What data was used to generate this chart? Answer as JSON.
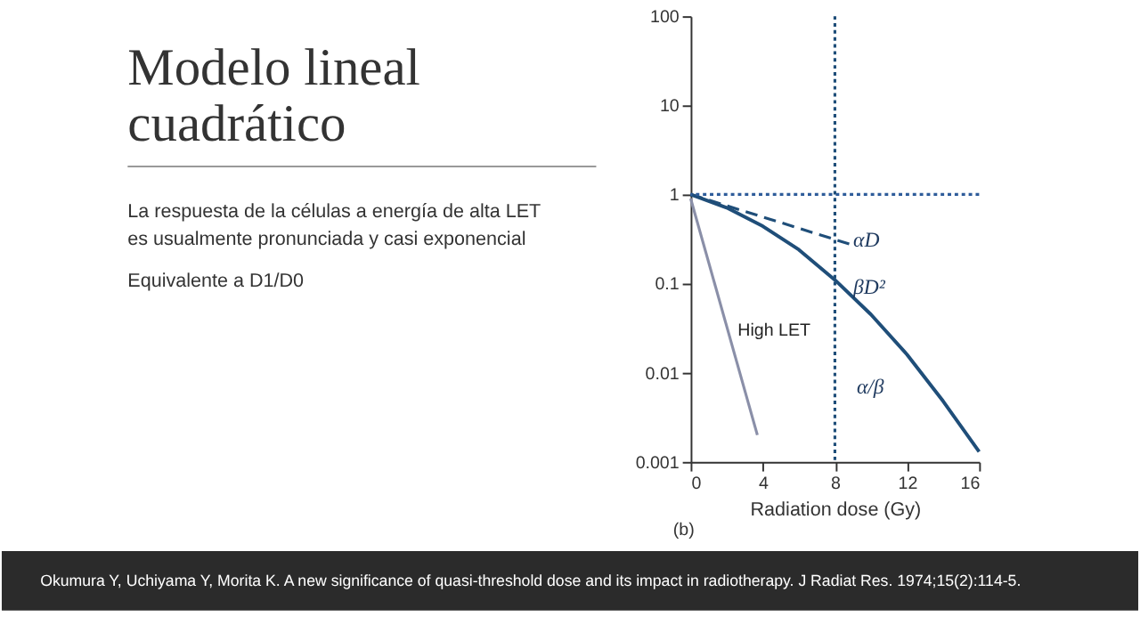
{
  "chart_data": {
    "type": "line",
    "title": "Modelo lineal cuadrático",
    "xlabel": "Radiation dose (Gy)",
    "x": [
      0,
      2,
      4,
      6,
      8,
      10,
      12,
      14,
      16
    ],
    "series": [
      {
        "color": "#1f4e79",
        "line_style": "solid",
        "values": [
          1,
          0.71,
          0.44,
          0.24,
          0.11,
          0.045,
          0.016,
          0.0048,
          0.0013
        ]
      },
      {
        "color": "#1f4e79",
        "line_style": "dashed",
        "x": [
          0,
          9
        ],
        "values": [
          1,
          0.27
        ]
      },
      {
        "name": "High LET",
        "color": "#8a8fa8",
        "line_style": "solid",
        "x": [
          0,
          3.7
        ],
        "values": [
          0.9,
          0.002
        ]
      }
    ],
    "log": "y",
    "xlim": [
      0,
      16
    ],
    "ylim": [
      0.001,
      100
    ],
    "xticks": [
      0,
      4,
      8,
      12,
      16
    ],
    "yticks": [
      0.001,
      0.01,
      0.1,
      1,
      10,
      100
    ],
    "grid": false,
    "legend": false,
    "marker": "none",
    "ref_lines": [
      {
        "axis": "y",
        "value": 1,
        "color": "#2e5c9a",
        "line_style": "dotted"
      },
      {
        "axis": "x",
        "value": 8,
        "color": "#1f4e79",
        "line_style": "dotted"
      }
    ],
    "annotations": [
      "αD",
      "βD²",
      "α/β",
      "La respuesta de la células a energía de alta LET es usualmente pronunciada y casi exponencial",
      "Equivalente a D1/D0",
      "(b)",
      "Okumura Y, Uchiyama Y, Morita K. A new significance of quasi-threshold dose and its impact in radiotherapy. J Radiat Res. 1974;15(2):114-5."
    ]
  }
}
